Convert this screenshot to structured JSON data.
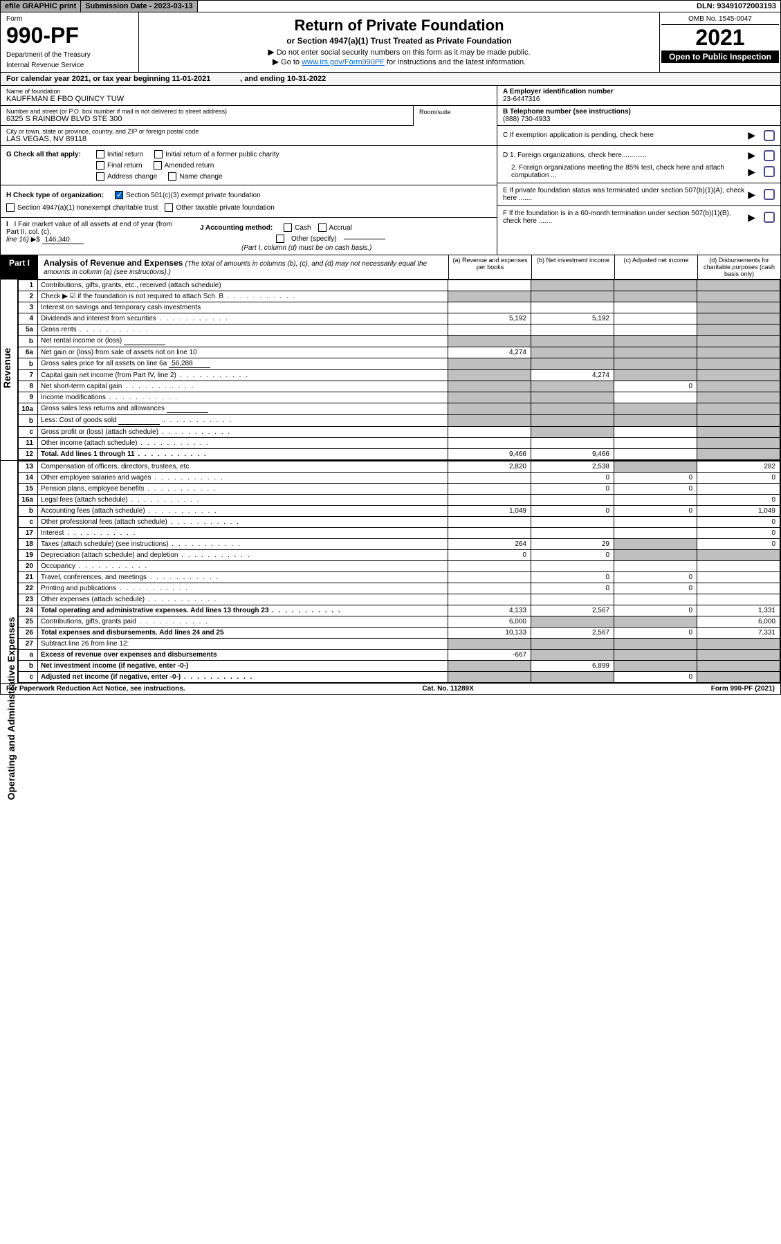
{
  "header": {
    "efile": "efile GRAPHIC print",
    "sub_date_label": "Submission Date -",
    "sub_date": "2023-03-13",
    "dln_label": "DLN:",
    "dln": "93491072003193"
  },
  "form": {
    "form_label": "Form",
    "number": "990-PF",
    "dept1": "Department of the Treasury",
    "dept2": "Internal Revenue Service",
    "title": "Return of Private Foundation",
    "subtitle": "or Section 4947(a)(1) Trust Treated as Private Foundation",
    "instr1": "Do not enter social security numbers on this form as it may be made public.",
    "instr2_pre": "Go to ",
    "instr2_link": "www.irs.gov/Form990PF",
    "instr2_post": " for instructions and the latest information.",
    "omb": "OMB No. 1545-0047",
    "year": "2021",
    "open": "Open to Public Inspection"
  },
  "cal": {
    "text1": "For calendar year 2021, or tax year beginning ",
    "begin": "11-01-2021",
    "text2": ", and ending ",
    "end": "10-31-2022"
  },
  "ident": {
    "name_label": "Name of foundation",
    "name": "KAUFFMAN E FBO QUINCY TUW",
    "addr_label": "Number and street (or P.O. box number if mail is not delivered to street address)",
    "addr": "6325 S RAINBOW BLVD STE 300",
    "room_label": "Room/suite",
    "city_label": "City or town, state or province, country, and ZIP or foreign postal code",
    "city": "LAS VEGAS, NV  89118",
    "a_label": "A Employer identification number",
    "a_val": "23-6447316",
    "b_label": "B Telephone number (see instructions)",
    "b_val": "(888) 730-4933",
    "c_label": "C If exemption application is pending, check here",
    "d1": "D 1. Foreign organizations, check here.............",
    "d2": "2. Foreign organizations meeting the 85% test, check here and attach computation ...",
    "e_label": "E  If private foundation status was terminated under section 507(b)(1)(A), check here .......",
    "f_label": "F  If the foundation is in a 60-month termination under section 507(b)(1)(B), check here ......."
  },
  "checks": {
    "g_label": "G Check all that apply:",
    "g_opts": [
      "Initial return",
      "Initial return of a former public charity",
      "Final return",
      "Amended return",
      "Address change",
      "Name change"
    ],
    "h_label": "H Check type of organization:",
    "h1": "Section 501(c)(3) exempt private foundation",
    "h2": "Section 4947(a)(1) nonexempt charitable trust",
    "h3": "Other taxable private foundation",
    "i_label": "I Fair market value of all assets at end of year (from Part II, col. (c),",
    "i_line": "line 16)",
    "i_val": "146,340",
    "j_label": "J Accounting method:",
    "j_opts": [
      "Cash",
      "Accrual"
    ],
    "j_other": "Other (specify)",
    "j_note": "(Part I, column (d) must be on cash basis.)"
  },
  "part1": {
    "tab": "Part I",
    "title": "Analysis of Revenue and Expenses",
    "note": "(The total of amounts in columns (b), (c), and (d) may not necessarily equal the amounts in column (a) (see instructions).)",
    "cols": {
      "a": "(a) Revenue and expenses per books",
      "b": "(b) Net investment income",
      "c": "(c) Adjusted net income",
      "d": "(d) Disbursements for charitable purposes (cash basis only)"
    },
    "side_rev": "Revenue",
    "side_exp": "Operating and Administrative Expenses"
  },
  "rows": [
    {
      "n": "1",
      "d": "Contributions, gifts, grants, etc., received (attach schedule)",
      "a": "",
      "b": "",
      "c": "",
      "dd": "",
      "sa": 0,
      "sb": 1,
      "sc": 1,
      "sd": 1
    },
    {
      "n": "2",
      "d": "Check ▶ ☑ if the foundation is not required to attach Sch. B",
      "dots": 1,
      "a": "",
      "b": "",
      "c": "",
      "dd": "",
      "sa": 1,
      "sb": 1,
      "sc": 1,
      "sd": 1,
      "bold": 0
    },
    {
      "n": "3",
      "d": "Interest on savings and temporary cash investments",
      "a": "",
      "b": "",
      "c": "",
      "dd": "",
      "sa": 0,
      "sb": 0,
      "sc": 0,
      "sd": 1
    },
    {
      "n": "4",
      "d": "Dividends and interest from securities",
      "dots": 1,
      "a": "5,192",
      "b": "5,192",
      "c": "",
      "dd": "",
      "sa": 0,
      "sb": 0,
      "sc": 0,
      "sd": 1
    },
    {
      "n": "5a",
      "d": "Gross rents",
      "dots": 1,
      "a": "",
      "b": "",
      "c": "",
      "dd": "",
      "sa": 0,
      "sb": 0,
      "sc": 0,
      "sd": 1
    },
    {
      "n": "b",
      "d": "Net rental income or (loss)",
      "uline": 1,
      "a": "",
      "b": "",
      "c": "",
      "dd": "",
      "sa": 1,
      "sb": 1,
      "sc": 1,
      "sd": 1
    },
    {
      "n": "6a",
      "d": "Net gain or (loss) from sale of assets not on line 10",
      "a": "4,274",
      "b": "",
      "c": "",
      "dd": "",
      "sa": 0,
      "sb": 1,
      "sc": 1,
      "sd": 1
    },
    {
      "n": "b",
      "d": "Gross sales price for all assets on line 6a",
      "uval": "56,288",
      "a": "",
      "b": "",
      "c": "",
      "dd": "",
      "sa": 1,
      "sb": 1,
      "sc": 1,
      "sd": 1
    },
    {
      "n": "7",
      "d": "Capital gain net income (from Part IV, line 2)",
      "dots": 1,
      "a": "",
      "b": "4,274",
      "c": "",
      "dd": "",
      "sa": 1,
      "sb": 0,
      "sc": 1,
      "sd": 1
    },
    {
      "n": "8",
      "d": "Net short-term capital gain",
      "dots": 1,
      "a": "",
      "b": "",
      "c": "0",
      "dd": "",
      "sa": 1,
      "sb": 1,
      "sc": 0,
      "sd": 1
    },
    {
      "n": "9",
      "d": "Income modifications",
      "dots": 1,
      "a": "",
      "b": "",
      "c": "",
      "dd": "",
      "sa": 1,
      "sb": 1,
      "sc": 0,
      "sd": 1
    },
    {
      "n": "10a",
      "d": "Gross sales less returns and allowances",
      "uline": 1,
      "a": "",
      "b": "",
      "c": "",
      "dd": "",
      "sa": 1,
      "sb": 1,
      "sc": 1,
      "sd": 1
    },
    {
      "n": "b",
      "d": "Less: Cost of goods sold",
      "dots": 1,
      "uline": 1,
      "a": "",
      "b": "",
      "c": "",
      "dd": "",
      "sa": 1,
      "sb": 1,
      "sc": 1,
      "sd": 1
    },
    {
      "n": "c",
      "d": "Gross profit or (loss) (attach schedule)",
      "dots": 1,
      "a": "",
      "b": "",
      "c": "",
      "dd": "",
      "sa": 0,
      "sb": 1,
      "sc": 0,
      "sd": 1
    },
    {
      "n": "11",
      "d": "Other income (attach schedule)",
      "dots": 1,
      "a": "",
      "b": "",
      "c": "",
      "dd": "",
      "sa": 0,
      "sb": 0,
      "sc": 0,
      "sd": 1
    },
    {
      "n": "12",
      "d": "Total. Add lines 1 through 11",
      "dots": 1,
      "a": "9,466",
      "b": "9,466",
      "c": "",
      "dd": "",
      "sa": 0,
      "sb": 0,
      "sc": 0,
      "sd": 1,
      "bold": 1
    }
  ],
  "erows": [
    {
      "n": "13",
      "d": "Compensation of officers, directors, trustees, etc.",
      "a": "2,820",
      "b": "2,538",
      "c": "",
      "dd": "282",
      "sa": 0,
      "sb": 0,
      "sc": 1,
      "sd": 0
    },
    {
      "n": "14",
      "d": "Other employee salaries and wages",
      "dots": 1,
      "a": "",
      "b": "0",
      "c": "0",
      "dd": "0",
      "sa": 0,
      "sb": 0,
      "sc": 0,
      "sd": 0
    },
    {
      "n": "15",
      "d": "Pension plans, employee benefits",
      "dots": 1,
      "a": "",
      "b": "0",
      "c": "0",
      "dd": "",
      "sa": 0,
      "sb": 0,
      "sc": 0,
      "sd": 0
    },
    {
      "n": "16a",
      "d": "Legal fees (attach schedule)",
      "dots": 1,
      "a": "",
      "b": "",
      "c": "",
      "dd": "0",
      "sa": 0,
      "sb": 0,
      "sc": 0,
      "sd": 0
    },
    {
      "n": "b",
      "d": "Accounting fees (attach schedule)",
      "dots": 1,
      "a": "1,049",
      "b": "0",
      "c": "0",
      "dd": "1,049",
      "sa": 0,
      "sb": 0,
      "sc": 0,
      "sd": 0
    },
    {
      "n": "c",
      "d": "Other professional fees (attach schedule)",
      "dots": 1,
      "a": "",
      "b": "",
      "c": "",
      "dd": "0",
      "sa": 0,
      "sb": 0,
      "sc": 0,
      "sd": 0
    },
    {
      "n": "17",
      "d": "Interest",
      "dots": 1,
      "a": "",
      "b": "",
      "c": "",
      "dd": "0",
      "sa": 0,
      "sb": 0,
      "sc": 0,
      "sd": 0
    },
    {
      "n": "18",
      "d": "Taxes (attach schedule) (see instructions)",
      "dots": 1,
      "a": "264",
      "b": "29",
      "c": "",
      "dd": "0",
      "sa": 0,
      "sb": 0,
      "sc": 1,
      "sd": 0
    },
    {
      "n": "19",
      "d": "Depreciation (attach schedule) and depletion",
      "dots": 1,
      "a": "0",
      "b": "0",
      "c": "",
      "dd": "",
      "sa": 0,
      "sb": 0,
      "sc": 1,
      "sd": 1
    },
    {
      "n": "20",
      "d": "Occupancy",
      "dots": 1,
      "a": "",
      "b": "",
      "c": "",
      "dd": "",
      "sa": 0,
      "sb": 0,
      "sc": 0,
      "sd": 0
    },
    {
      "n": "21",
      "d": "Travel, conferences, and meetings",
      "dots": 1,
      "a": "",
      "b": "0",
      "c": "0",
      "dd": "",
      "sa": 0,
      "sb": 0,
      "sc": 0,
      "sd": 0
    },
    {
      "n": "22",
      "d": "Printing and publications",
      "dots": 1,
      "a": "",
      "b": "0",
      "c": "0",
      "dd": "",
      "sa": 0,
      "sb": 0,
      "sc": 0,
      "sd": 0
    },
    {
      "n": "23",
      "d": "Other expenses (attach schedule)",
      "dots": 1,
      "a": "",
      "b": "",
      "c": "",
      "dd": "",
      "sa": 0,
      "sb": 0,
      "sc": 0,
      "sd": 0
    },
    {
      "n": "24",
      "d": "Total operating and administrative expenses. Add lines 13 through 23",
      "dots": 1,
      "a": "4,133",
      "b": "2,567",
      "c": "0",
      "dd": "1,331",
      "sa": 0,
      "sb": 0,
      "sc": 0,
      "sd": 0,
      "bold": 1
    },
    {
      "n": "25",
      "d": "Contributions, gifts, grants paid",
      "dots": 1,
      "a": "6,000",
      "b": "",
      "c": "",
      "dd": "6,000",
      "sa": 0,
      "sb": 1,
      "sc": 1,
      "sd": 0
    },
    {
      "n": "26",
      "d": "Total expenses and disbursements. Add lines 24 and 25",
      "a": "10,133",
      "b": "2,567",
      "c": "0",
      "dd": "7,331",
      "sa": 0,
      "sb": 0,
      "sc": 0,
      "sd": 0,
      "bold": 1
    },
    {
      "n": "27",
      "d": "Subtract line 26 from line 12:",
      "a": "",
      "b": "",
      "c": "",
      "dd": "",
      "sa": 1,
      "sb": 1,
      "sc": 1,
      "sd": 1
    },
    {
      "n": "a",
      "d": "Excess of revenue over expenses and disbursements",
      "a": "-667",
      "b": "",
      "c": "",
      "dd": "",
      "sa": 0,
      "sb": 1,
      "sc": 1,
      "sd": 1,
      "bold": 1
    },
    {
      "n": "b",
      "d": "Net investment income (if negative, enter -0-)",
      "a": "",
      "b": "6,899",
      "c": "",
      "dd": "",
      "sa": 1,
      "sb": 0,
      "sc": 1,
      "sd": 1,
      "bold": 1
    },
    {
      "n": "c",
      "d": "Adjusted net income (if negative, enter -0-)",
      "dots": 1,
      "a": "",
      "b": "",
      "c": "0",
      "dd": "",
      "sa": 1,
      "sb": 1,
      "sc": 0,
      "sd": 1,
      "bold": 1
    }
  ],
  "footer": {
    "left": "For Paperwork Reduction Act Notice, see instructions.",
    "mid": "Cat. No. 11289X",
    "right": "Form 990-PF (2021)"
  },
  "colors": {
    "shade": "#c0c0c0",
    "link": "#0066cc",
    "chk_box": "#4a4a8a"
  }
}
